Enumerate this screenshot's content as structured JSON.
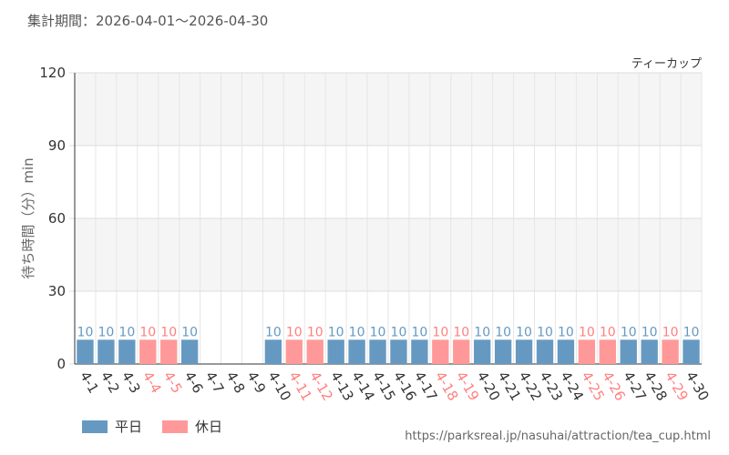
{
  "period_label": "集計期間：2026-04-01～2026-04-30",
  "source_url": "https://parksreal.jp/nasuhai/attraction/tea_cup.html",
  "legend": [
    {
      "label": "平日",
      "color": "#6699c2"
    },
    {
      "label": "休日",
      "color": "#ff9999"
    }
  ],
  "chart_data": {
    "type": "bar",
    "title": "ティーカップ",
    "ylabel": "待ち時間（分）min",
    "ylim": [
      0,
      120
    ],
    "yticks": [
      0,
      30,
      60,
      90,
      120
    ],
    "categories": [
      "4-1",
      "4-2",
      "4-3",
      "4-4",
      "4-5",
      "4-6",
      "4-7",
      "4-8",
      "4-9",
      "4-10",
      "4-11",
      "4-12",
      "4-13",
      "4-14",
      "4-15",
      "4-16",
      "4-17",
      "4-18",
      "4-19",
      "4-20",
      "4-21",
      "4-22",
      "4-23",
      "4-24",
      "4-25",
      "4-26",
      "4-27",
      "4-28",
      "4-29",
      "4-30"
    ],
    "values": [
      10,
      10,
      10,
      10,
      10,
      10,
      null,
      null,
      null,
      10,
      10,
      10,
      10,
      10,
      10,
      10,
      10,
      10,
      10,
      10,
      10,
      10,
      10,
      10,
      10,
      10,
      10,
      10,
      10,
      10
    ],
    "day_type": [
      "weekday",
      "weekday",
      "weekday",
      "holiday",
      "holiday",
      "weekday",
      "weekday",
      "weekday",
      "weekday",
      "weekday",
      "holiday",
      "holiday",
      "weekday",
      "weekday",
      "weekday",
      "weekday",
      "weekday",
      "holiday",
      "holiday",
      "weekday",
      "weekday",
      "weekday",
      "weekday",
      "weekday",
      "holiday",
      "holiday",
      "weekday",
      "weekday",
      "holiday",
      "weekday"
    ],
    "colors": {
      "weekday": "#6699c2",
      "holiday": "#ff9999",
      "weekday_text": "#333333",
      "holiday_text": "#ff8080"
    }
  }
}
